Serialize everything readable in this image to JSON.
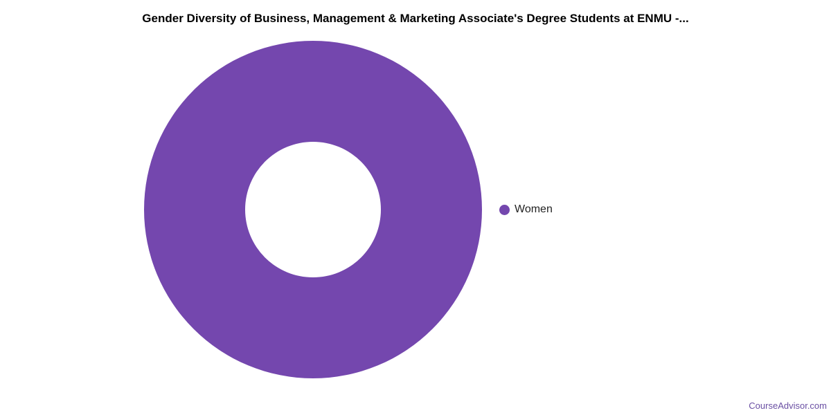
{
  "chart_data": {
    "type": "pie",
    "style": "donut",
    "title": "Gender Diversity of Business, Management & Marketing Associate's Degree Students at ENMU -...",
    "slices": [
      {
        "name": "Women",
        "value": 100,
        "color": "#7447ae"
      }
    ],
    "legend_placement": "right"
  },
  "credit": "CourseAdvisor.com"
}
